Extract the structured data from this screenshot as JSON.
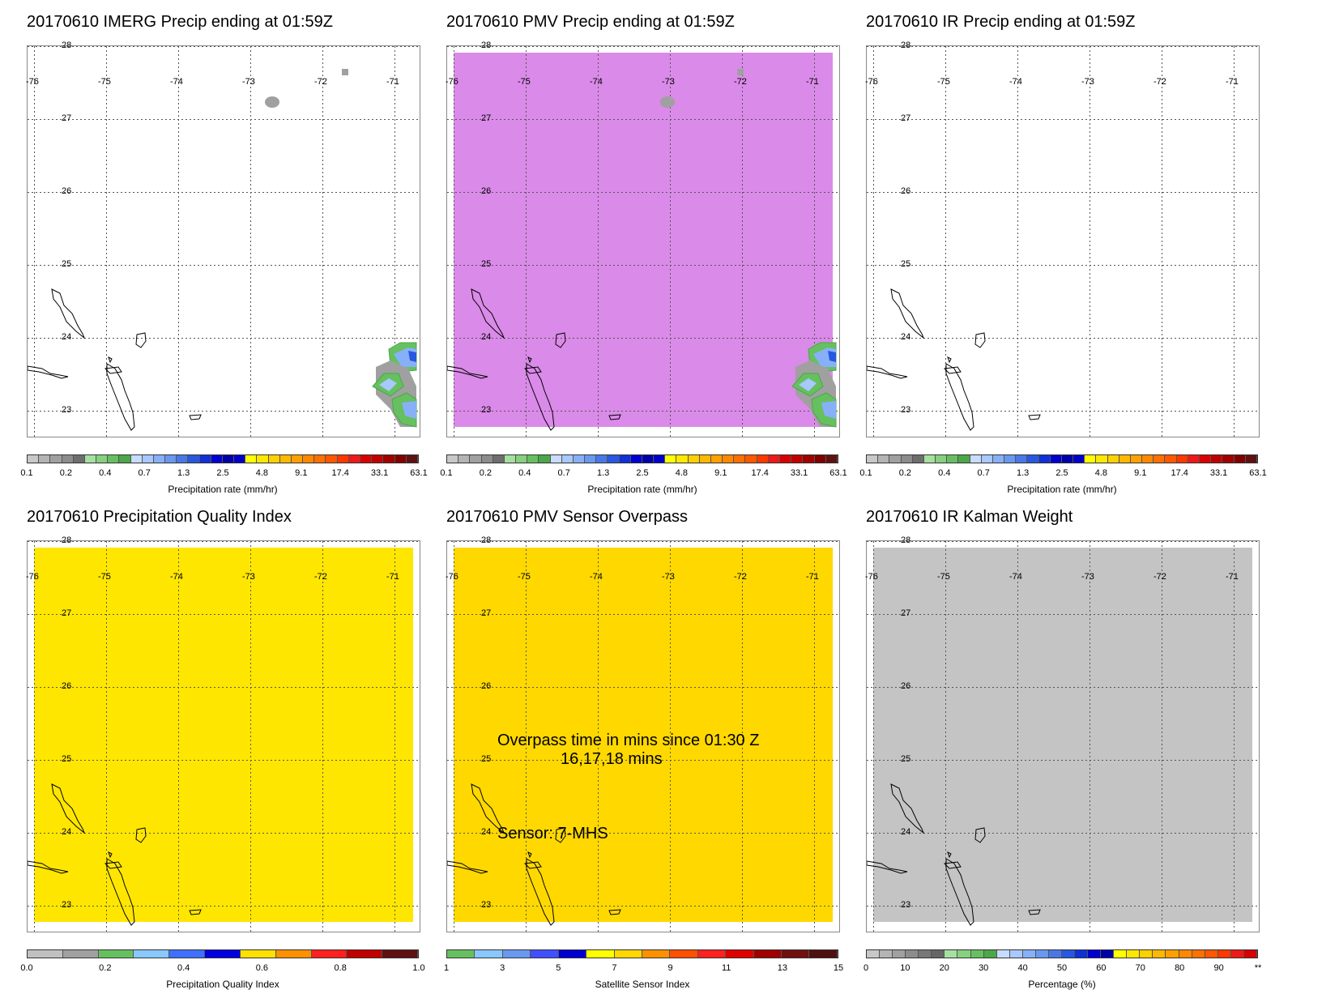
{
  "panels": [
    {
      "title": "20170610 IMERG Precip ending at 01:59Z",
      "fill_color": "#ffffff",
      "colorbar_label": "Precipitation rate (mm/hr)",
      "colorbar_colors": [
        "#c8c8c8",
        "#b4b4b4",
        "#a0a0a0",
        "#8c8c8c",
        "#6e6e6e",
        "#a6e0a0",
        "#86d080",
        "#66c060",
        "#4aa848",
        "#c8dcff",
        "#a8c8ff",
        "#88b0f8",
        "#6898f0",
        "#4878e8",
        "#2858e0",
        "#1030d8",
        "#0000d0",
        "#0000a8",
        "#0000c8",
        "#ffff00",
        "#ffe800",
        "#ffd000",
        "#ffb800",
        "#ffa000",
        "#ff8800",
        "#ff7000",
        "#ff5800",
        "#ff3800",
        "#f01818",
        "#d80000",
        "#c00000",
        "#a00000",
        "#800000",
        "#601010"
      ],
      "colorbar_ticks": [
        "0.1",
        "0.2",
        "0.4",
        "0.7",
        "1.3",
        "2.5",
        "4.8",
        "9.1",
        "17.4",
        "33.1",
        "63.1"
      ]
    },
    {
      "title": "20170610 PMV Precip ending at 01:59Z",
      "fill_color": "#da8ae8",
      "colorbar_label": "Precipitation rate (mm/hr)",
      "colorbar_ticks": [
        "0.1",
        "0.2",
        "0.4",
        "0.7",
        "1.3",
        "2.5",
        "4.8",
        "9.1",
        "17.4",
        "33.1",
        "63.1"
      ]
    },
    {
      "title": "20170610 IR Precip ending at 01:59Z",
      "fill_color": "#ffffff",
      "colorbar_label": "Precipitation rate (mm/hr)",
      "colorbar_ticks": [
        "0.1",
        "0.2",
        "0.4",
        "0.7",
        "1.3",
        "2.5",
        "4.8",
        "9.1",
        "17.4",
        "33.1",
        "63.1"
      ]
    },
    {
      "title": "20170610 Precipitation Quality Index",
      "fill_color": "#ffe600",
      "colorbar_label": "Precipitation Quality Index",
      "colorbar_colors": [
        "#c0c0c0",
        "#a0a0a0",
        "#66c060",
        "#88c8ff",
        "#4070ff",
        "#0000e0",
        "#ffe000",
        "#ff9000",
        "#ff2020",
        "#c00000",
        "#601010"
      ],
      "colorbar_ticks": [
        "0.0",
        "0.2",
        "0.4",
        "0.6",
        "0.8",
        "1.0"
      ]
    },
    {
      "title": "20170610 PMV Sensor Overpass",
      "fill_color": "#ffd800",
      "colorbar_label": "Satellite Sensor Index",
      "colorbar_colors": [
        "#66c060",
        "#88c8ff",
        "#6898f0",
        "#4050ff",
        "#0000d0",
        "#ffff00",
        "#ffd800",
        "#ff9000",
        "#ff5000",
        "#ff2020",
        "#e00000",
        "#a00000",
        "#701010",
        "#501010"
      ],
      "colorbar_ticks": [
        "1",
        "3",
        "5",
        "7",
        "9",
        "11",
        "13",
        "15"
      ],
      "overlay_line1": "Overpass time in mins since 01:30 Z",
      "overlay_line2": "16,17,18 mins",
      "sensor_text": "Sensor:   7-MHS"
    },
    {
      "title": "20170610 IR Kalman Weight",
      "fill_color": "#c4c4c4",
      "colorbar_label": "Percentage (%)",
      "colorbar_colors": [
        "#c8c8c8",
        "#b4b4b4",
        "#a0a0a0",
        "#8c8c8c",
        "#787878",
        "#666666",
        "#a6e0a0",
        "#86d080",
        "#66c060",
        "#4aa848",
        "#c8dcff",
        "#a8c8ff",
        "#88b0f8",
        "#6898f0",
        "#4878e8",
        "#2858e0",
        "#1030d8",
        "#0000d0",
        "#0000a8",
        "#ffff00",
        "#ffe800",
        "#ffd000",
        "#ffb800",
        "#ffa000",
        "#ff8800",
        "#ff7000",
        "#ff5800",
        "#ff3800",
        "#f01818",
        "#d80000"
      ],
      "colorbar_ticks": [
        "0",
        "10",
        "20",
        "30",
        "40",
        "50",
        "60",
        "70",
        "80",
        "90",
        "**"
      ]
    }
  ],
  "lon_labels": [
    "-76",
    "-75",
    "-74",
    "-73",
    "-72",
    "-71"
  ],
  "lat_labels": [
    "28",
    "27",
    "26",
    "25",
    "24",
    "23"
  ]
}
